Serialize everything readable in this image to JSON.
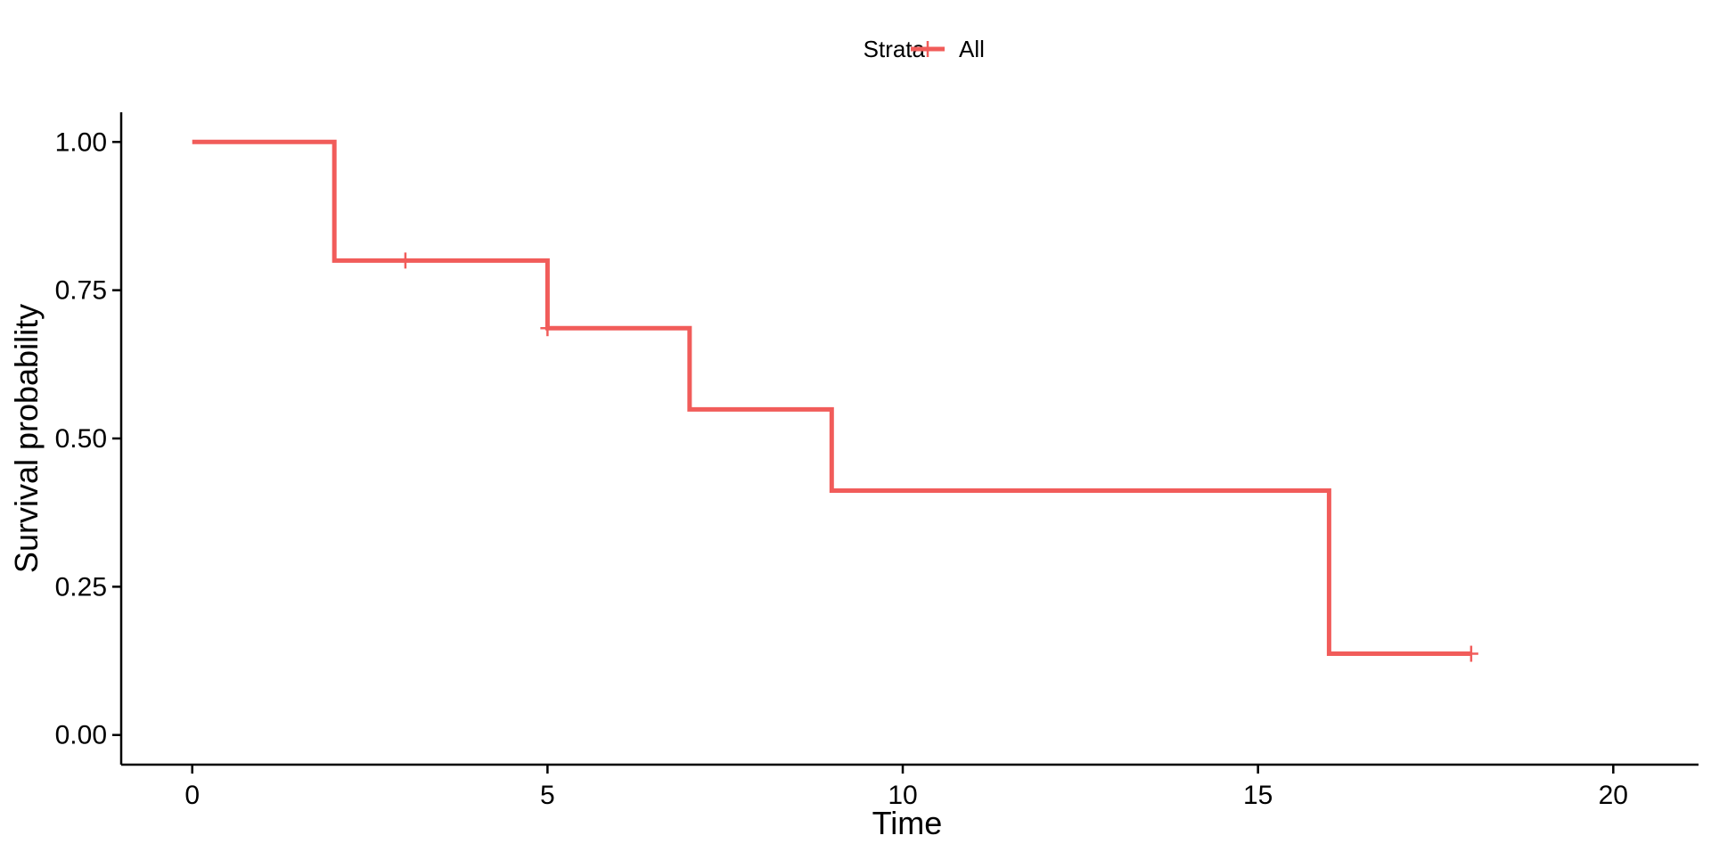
{
  "chart_data": {
    "type": "line",
    "subtype": "kaplan-meier-step",
    "title": "",
    "xlabel": "Time",
    "ylabel": "Survival probability",
    "xlim": [
      -1,
      21.2
    ],
    "ylim": [
      -0.05,
      1.05
    ],
    "x_ticks": [
      0,
      5,
      10,
      15,
      20
    ],
    "x_tick_labels": [
      "0",
      "5",
      "10",
      "15",
      "20"
    ],
    "y_ticks": [
      0,
      0.25,
      0.5,
      0.75,
      1.0
    ],
    "y_tick_labels": [
      "0.00",
      "0.25",
      "0.50",
      "0.75",
      "1.00"
    ],
    "grid": false,
    "legend": {
      "position": "top",
      "title": "Strata",
      "entries": [
        "All"
      ]
    },
    "series": [
      {
        "name": "All",
        "color": "#F15C5A",
        "steps": [
          {
            "x": 0,
            "y": 1.0
          },
          {
            "x": 2,
            "y": 0.8
          },
          {
            "x": 5,
            "y": 0.686
          },
          {
            "x": 7,
            "y": 0.549
          },
          {
            "x": 9,
            "y": 0.412
          },
          {
            "x": 16,
            "y": 0.137
          }
        ],
        "end_x": 18,
        "censor_points": [
          {
            "x": 3,
            "y": 0.8
          },
          {
            "x": 5,
            "y": 0.686
          },
          {
            "x": 18,
            "y": 0.137
          }
        ]
      }
    ]
  }
}
